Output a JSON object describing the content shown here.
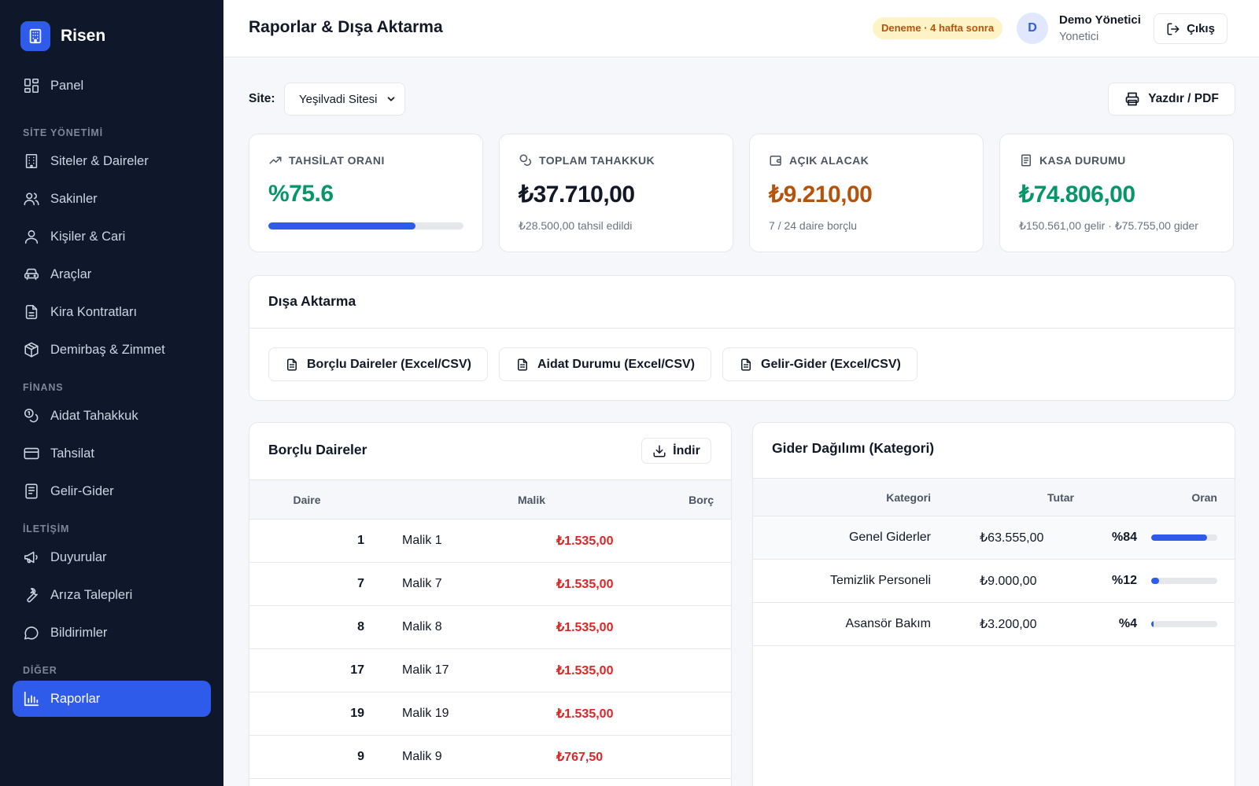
{
  "brand": {
    "name": "Risen"
  },
  "sidebar": {
    "panel": "Panel",
    "sections": {
      "site": "SİTE YÖNETİMİ",
      "finance": "FİNANS",
      "communication": "İLETİŞİM",
      "other": "DİĞER"
    },
    "items": {
      "sites": "Siteler & Daireler",
      "residents": "Sakinler",
      "people": "Kişiler & Cari",
      "vehicles": "Araçlar",
      "leases": "Kira Kontratları",
      "assets": "Demirbaş & Zimmet",
      "dues": "Aidat Tahakkuk",
      "collection": "Tahsilat",
      "income_expense": "Gelir-Gider",
      "announcements": "Duyurular",
      "faults": "Arıza Talepleri",
      "notifications": "Bildirimler",
      "reports": "Raporlar"
    }
  },
  "header": {
    "title": "Raporlar & Dışa Aktarma",
    "trial_badge": "Deneme · 4 hafta sonra",
    "avatar_initial": "D",
    "user_name": "Demo Yönetici",
    "user_role": "Yonetici",
    "logout_label": "Çıkış"
  },
  "filters": {
    "site_label": "Site:",
    "site_value": "Yeşilvadi Sitesi",
    "print_label": "Yazdır / PDF"
  },
  "kpis": {
    "collection_rate": {
      "label": "TAHSİLAT ORANI",
      "value": "%75.6",
      "progress": 0.756
    },
    "total_accrual": {
      "label": "TOPLAM TAHAKKUK",
      "value": "₺37.710,00",
      "sub": "₺28.500,00 tahsil edildi"
    },
    "open_receivable": {
      "label": "AÇIK ALACAK",
      "value": "₺9.210,00",
      "sub": "7 / 24 daire borçlu"
    },
    "cash_status": {
      "label": "KASA DURUMU",
      "value": "₺74.806,00",
      "sub": "₺150.561,00 gelir · ₺75.755,00 gider"
    }
  },
  "export": {
    "title": "Dışa Aktarma",
    "buttons": [
      "Borçlu Daireler (Excel/CSV)",
      "Aidat Durumu (Excel/CSV)",
      "Gelir-Gider (Excel/CSV)"
    ]
  },
  "debtors": {
    "title": "Borçlu Daireler",
    "download_label": "İndir",
    "columns": [
      "Daire",
      "Malik",
      "Borç"
    ],
    "rows": [
      {
        "unit": "1",
        "owner": "Malik 1",
        "debt": "₺1.535,00"
      },
      {
        "unit": "7",
        "owner": "Malik 7",
        "debt": "₺1.535,00"
      },
      {
        "unit": "8",
        "owner": "Malik 8",
        "debt": "₺1.535,00"
      },
      {
        "unit": "17",
        "owner": "Malik 17",
        "debt": "₺1.535,00"
      },
      {
        "unit": "19",
        "owner": "Malik 19",
        "debt": "₺1.535,00"
      },
      {
        "unit": "9",
        "owner": "Malik 9",
        "debt": "₺767,50"
      }
    ]
  },
  "expense_categories": {
    "title": "Gider Dağılımı (Kategori)",
    "columns": [
      "Kategori",
      "Tutar",
      "Oran"
    ],
    "rows": [
      {
        "category": "Genel Giderler",
        "amount": "₺63.555,00",
        "percent_label": "%84",
        "share": 0.84
      },
      {
        "category": "Temizlik Personeli",
        "amount": "₺9.000,00",
        "percent_label": "%12",
        "share": 0.12
      },
      {
        "category": "Asansör Bakım",
        "amount": "₺3.200,00",
        "percent_label": "%4",
        "share": 0.04
      }
    ]
  },
  "colors": {
    "sidebar_bg": "#0f172a",
    "accent": "#2f5bea",
    "success": "#059669",
    "warning": "#b45309",
    "danger": "#dc2626"
  }
}
